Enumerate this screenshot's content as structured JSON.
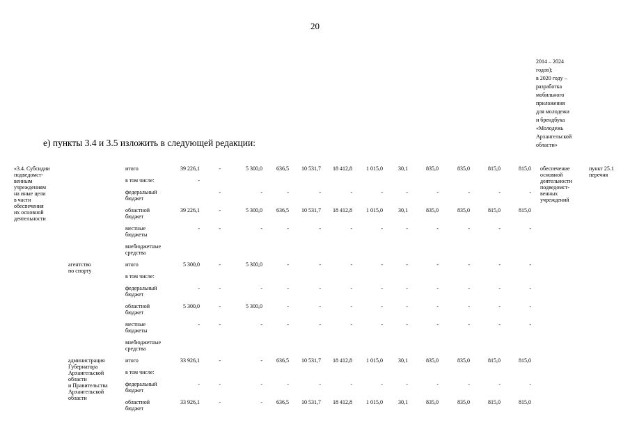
{
  "page": {
    "number": "20"
  },
  "note": {
    "text": "2014 – 2024\nгодов);\nв 2020 году –\nразработка\nмобильного\nприложения\nдля молодежи\nи брендбука\n«Молодежь\nАрхангельской\nобласти»"
  },
  "paragraph": {
    "text": "е) пункты 3.4 и 3.5 изложить в следующей редакции:"
  },
  "table": {
    "groups": [
      {
        "item": "«3.4. Субсидии\nподведомст-\nвенным\nучреждениям\nна иные цели\nв части\nобеспечения\nих основной\nдеятельности",
        "agency": "",
        "result": "обеспечение\nосновной\nдеятельности\nподведомст-\nвенных\nучреждений",
        "point": "пункт 25.1\nперечня",
        "rows": [
          {
            "label": "итого",
            "values": [
              "39 226,1",
              "-",
              "5 300,0",
              "636,5",
              "10 531,7",
              "18 412,8",
              "1 015,0",
              "30,1",
              "835,0",
              "835,0",
              "815,0",
              "815,0"
            ]
          },
          {
            "label": "в том числе:",
            "values": [
              "-"
            ]
          },
          {
            "label": "федеральный\nбюджет",
            "values": [
              "",
              "-",
              "-",
              "-",
              "-",
              "-",
              "-",
              "-",
              "-",
              "-",
              "-",
              "-"
            ]
          },
          {
            "label": "областной\nбюджет",
            "values": [
              "39 226,1",
              "-",
              "5 300,0",
              "636,5",
              "10 531,7",
              "18 412,8",
              "1 015,0",
              "30,1",
              "835,0",
              "835,0",
              "815,0",
              "815,0"
            ]
          },
          {
            "label": "местные\nбюджеты",
            "values": [
              "-",
              "-",
              "-",
              "-",
              "-",
              "-",
              "-",
              "-",
              "-",
              "-",
              "-",
              "-"
            ]
          },
          {
            "label": "внебюджетные\nсредства",
            "values": []
          }
        ]
      },
      {
        "item": "",
        "agency": "агентство\nпо спорту",
        "result": "",
        "point": "",
        "rows": [
          {
            "label": "итого",
            "values": [
              "5 300,0",
              "-",
              "5 300,0",
              "-",
              "-",
              "-",
              "-",
              "-",
              "-",
              "-",
              "-",
              "-"
            ]
          },
          {
            "label": "в том числе:",
            "values": []
          },
          {
            "label": "федеральный\nбюджет",
            "values": [
              "-",
              "-",
              "-",
              "-",
              "-",
              "-",
              "-",
              "-",
              "-",
              "-",
              "-",
              "-"
            ]
          },
          {
            "label": "областной\nбюджет",
            "values": [
              "5 300,0",
              "-",
              "5 300,0",
              "-",
              "-",
              "-",
              "-",
              "-",
              "-",
              "-",
              "-",
              "-"
            ]
          },
          {
            "label": "местные\nбюджеты",
            "values": [
              "-",
              "-",
              "-",
              "-",
              "-",
              "-",
              "-",
              "-",
              "-",
              "-",
              "-",
              "-"
            ]
          },
          {
            "label": "внебюджетные\nсредства",
            "values": []
          }
        ]
      },
      {
        "item": "",
        "agency": "администрация\nГубернатора\nАрхангельской\nобласти\nи Правительства\nАрхангельской\nобласти",
        "result": "",
        "point": "",
        "rows": [
          {
            "label": "итого",
            "values": [
              "33 926,1",
              "-",
              "-",
              "636,5",
              "10 531,7",
              "18 412,8",
              "1 015,0",
              "30,1",
              "835,0",
              "835,0",
              "815,0",
              "815,0"
            ]
          },
          {
            "label": "в том числе:",
            "values": []
          },
          {
            "label": "федеральный\nбюджет",
            "values": [
              "-",
              "-",
              "-",
              "-",
              "-",
              "-",
              "-",
              "-",
              "-",
              "-",
              "-",
              "-"
            ]
          },
          {
            "label": "областной\nбюджет",
            "values": [
              "33 926,1",
              "-",
              "-",
              "636,5",
              "10 531,7",
              "18 412,8",
              "1 015,0",
              "30,1",
              "835,0",
              "835,0",
              "815,0",
              "815,0"
            ]
          }
        ]
      }
    ]
  }
}
